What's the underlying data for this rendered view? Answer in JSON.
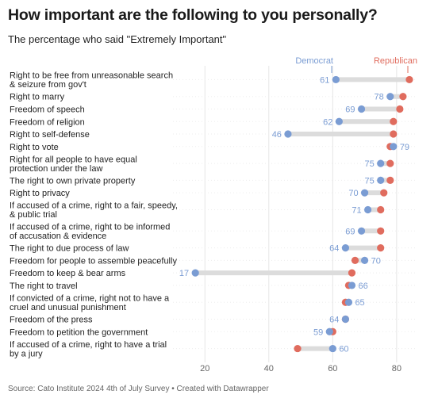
{
  "header": {
    "title": "How important are the following to you personally?",
    "subtitle": "The percentage who said \"Extremely Important\""
  },
  "footer": {
    "source": "Source: Cato Institute 2024 4th of July Survey • Created with Datawrapper"
  },
  "chart_data": {
    "type": "dot",
    "xlim": [
      10,
      86
    ],
    "xticks": [
      20,
      40,
      60,
      80
    ],
    "grid": true,
    "legend": "top-right",
    "series": [
      {
        "name": "Democrat",
        "color": "#7a9cd3"
      },
      {
        "name": "Republican",
        "color": "#e06c5e"
      }
    ],
    "rows": [
      {
        "label": [
          "Right to be free from unreasonable search",
          "& seizure from gov't"
        ],
        "democrat": 61,
        "republican": 84,
        "label_text": "61"
      },
      {
        "label": [
          "Right to marry"
        ],
        "democrat": 78,
        "republican": 82,
        "label_text": "78"
      },
      {
        "label": [
          "Freedom of speech"
        ],
        "democrat": 69,
        "republican": 81,
        "label_text": "69"
      },
      {
        "label": [
          "Freedom of religion"
        ],
        "democrat": 62,
        "republican": 79,
        "label_text": "62"
      },
      {
        "label": [
          "Right to self-defense"
        ],
        "democrat": 46,
        "republican": 79,
        "label_text": "46"
      },
      {
        "label": [
          "Right to vote"
        ],
        "democrat": 79,
        "republican": 78,
        "label_text": "79"
      },
      {
        "label": [
          "Right for all people to have equal",
          "protection under the law"
        ],
        "democrat": 75,
        "republican": 78,
        "label_text": "75"
      },
      {
        "label": [
          "The right to own private property"
        ],
        "democrat": 75,
        "republican": 78,
        "label_text": "75"
      },
      {
        "label": [
          "Right to privacy"
        ],
        "democrat": 70,
        "republican": 76,
        "label_text": "70"
      },
      {
        "label": [
          "If accused of a crime, right to a fair, speedy,",
          "& public trial"
        ],
        "democrat": 71,
        "republican": 75,
        "label_text": "71"
      },
      {
        "label": [
          "If accused of a crime, right to be informed",
          "of accusation & evidence"
        ],
        "democrat": 69,
        "republican": 75,
        "label_text": "69"
      },
      {
        "label": [
          "The right to due process of law"
        ],
        "democrat": 64,
        "republican": 75,
        "label_text": "64"
      },
      {
        "label": [
          "Freedom for people to assemble peacefully"
        ],
        "democrat": 70,
        "republican": 67,
        "label_text": "70"
      },
      {
        "label": [
          "Freedom to keep & bear arms"
        ],
        "democrat": 17,
        "republican": 66,
        "label_text": "17"
      },
      {
        "label": [
          "The right to travel"
        ],
        "democrat": 66,
        "republican": 65,
        "label_text": "66"
      },
      {
        "label": [
          "If convicted of a crime, right not to have a",
          "cruel and unusual punishment"
        ],
        "democrat": 65,
        "republican": 64,
        "label_text": "65"
      },
      {
        "label": [
          "Freedom of the press"
        ],
        "democrat": 64,
        "republican": 64,
        "label_text": "64"
      },
      {
        "label": [
          "Freedom to petition the government"
        ],
        "democrat": 59,
        "republican": 60,
        "label_text": "59"
      },
      {
        "label": [
          "If accused of a crime, right to have a trial",
          "by a jury"
        ],
        "democrat": 60,
        "republican": 49,
        "label_text": "60"
      }
    ]
  }
}
